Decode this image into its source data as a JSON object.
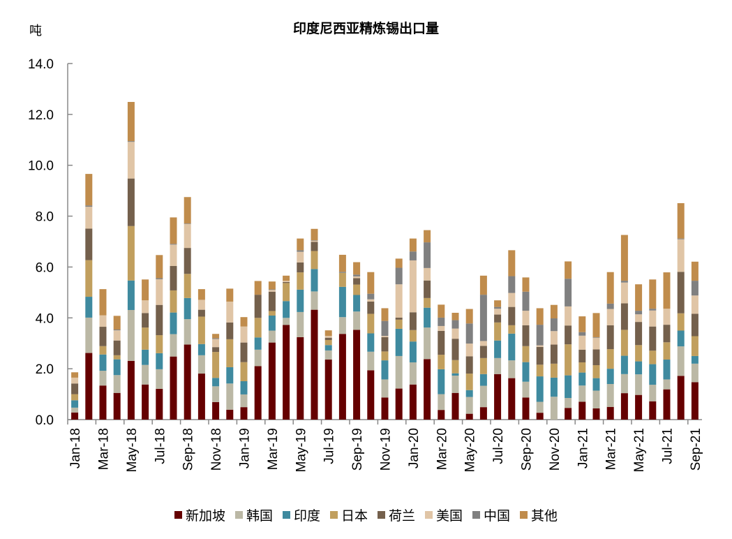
{
  "chart_data": {
    "type": "bar",
    "stacked": true,
    "title": "印度尼西亚精炼锡出口量",
    "ylabel": "吨",
    "ylim": [
      0,
      14
    ],
    "yticks": [
      "0.0",
      "2.0",
      "4.0",
      "6.0",
      "8.0",
      "10.0",
      "12.0",
      "14.0"
    ],
    "grid": false,
    "legend": "bottom",
    "categories": [
      "Jan-18",
      "Feb-18",
      "Mar-18",
      "Apr-18",
      "May-18",
      "Jun-18",
      "Jul-18",
      "Aug-18",
      "Sep-18",
      "Oct-18",
      "Nov-18",
      "Dec-18",
      "Jan-19",
      "Feb-19",
      "Mar-19",
      "Apr-19",
      "May-19",
      "Jun-19",
      "Jul-19",
      "Aug-19",
      "Sep-19",
      "Oct-19",
      "Nov-19",
      "Dec-19",
      "Jan-20",
      "Feb-20",
      "Mar-20",
      "Apr-20",
      "May-20",
      "Jun-20",
      "Jul-20",
      "Aug-20",
      "Sep-20",
      "Oct-20",
      "Nov-20",
      "Dec-20",
      "Jan-21",
      "Feb-21",
      "Mar-21",
      "Apr-21",
      "May-21",
      "Jun-21",
      "Jul-21",
      "Aug-21",
      "Sep-21"
    ],
    "tick_labels": [
      "Jan-18",
      "Mar-18",
      "May-18",
      "Jul-18",
      "Sep-18",
      "Nov-18",
      "Jan-19",
      "Mar-19",
      "May-19",
      "Jul-19",
      "Sep-19",
      "Nov-19",
      "Jan-20",
      "Mar-20",
      "May-20",
      "Jul-20",
      "Sep-20",
      "Nov-20",
      "Jan-21",
      "Mar-21",
      "May-21",
      "Jul-21",
      "Sep-21"
    ],
    "series": [
      {
        "name": "新加坡",
        "color": "#650000",
        "values": [
          0.28,
          2.62,
          1.34,
          1.05,
          2.31,
          1.38,
          1.21,
          2.48,
          2.95,
          1.81,
          0.69,
          0.39,
          0.49,
          2.1,
          3.03,
          3.72,
          3.24,
          4.32,
          2.36,
          3.37,
          3.53,
          1.94,
          0.87,
          1.22,
          1.38,
          2.38,
          0.38,
          1.05,
          0.23,
          0.49,
          1.79,
          1.63,
          0.87,
          0.27,
          0,
          0.46,
          0.7,
          0.44,
          0.5,
          1.04,
          0.97,
          0.72,
          1.19,
          1.72,
          1.47
        ]
      },
      {
        "name": "韩国",
        "color": "#BBB8A5",
        "values": [
          0.19,
          1.39,
          0.58,
          0.7,
          2.0,
          0.77,
          0.77,
          0.88,
          1.0,
          0.72,
          0.62,
          1.03,
          0.5,
          0.65,
          0.47,
          0.28,
          0.99,
          0.72,
          0.36,
          0.66,
          0.72,
          0.73,
          0.71,
          1.28,
          0.87,
          1.24,
          0.62,
          0.68,
          0.66,
          0.84,
          0.63,
          0.7,
          0.62,
          0.43,
          0.9,
          0.39,
          0.64,
          0.7,
          0.9,
          0.75,
          0.81,
          0.65,
          0.39,
          1.16,
          0.73
        ]
      },
      {
        "name": "印度",
        "color": "#3F8A9F",
        "values": [
          0.29,
          0.82,
          0.64,
          0.62,
          1.16,
          0.6,
          0.63,
          0.85,
          0.83,
          0.44,
          0.33,
          0.64,
          0.52,
          0.48,
          0.59,
          0.66,
          0.88,
          0.88,
          0.21,
          1.19,
          0.65,
          0.72,
          0.75,
          1.07,
          0.82,
          0.78,
          0.98,
          0.09,
          0.27,
          0.46,
          0.69,
          1.05,
          0.77,
          1.0,
          0.75,
          0.89,
          0.51,
          0.49,
          0.6,
          0.72,
          0.51,
          0.81,
          0.78,
          0.62,
          0.3
        ]
      },
      {
        "name": "日本",
        "color": "#C19F5E",
        "values": [
          0.24,
          1.44,
          0.33,
          0.16,
          2.14,
          0.87,
          0.71,
          0.87,
          0.95,
          1.08,
          1.02,
          1.1,
          0.75,
          0.77,
          0.18,
          0.71,
          0.68,
          0.71,
          0.2,
          0.55,
          0.41,
          0.77,
          0.35,
          0.36,
          0.45,
          0.38,
          0.57,
          0.52,
          0.65,
          0.63,
          0.71,
          0.33,
          0.63,
          0.46,
          0.55,
          1.22,
          0.4,
          0.51,
          0.77,
          1.02,
          0.64,
          0.53,
          0.68,
          0.68,
          0.78
        ]
      },
      {
        "name": "荷兰",
        "color": "#74604C",
        "values": [
          0.42,
          1.24,
          0.76,
          0.58,
          1.87,
          0.57,
          1.19,
          0.96,
          1.02,
          0.27,
          0.19,
          0.66,
          0.77,
          0.91,
          0.76,
          0.04,
          0.39,
          0.36,
          0.09,
          0,
          0.25,
          0.48,
          0.56,
          0.08,
          0.7,
          0.69,
          0.94,
          0.84,
          0.68,
          0.48,
          0.31,
          0.72,
          0.82,
          0.7,
          0.75,
          0.74,
          0.5,
          0.62,
          0.94,
          1.04,
          0.91,
          0.95,
          0.69,
          1.63,
          0.88
        ]
      },
      {
        "name": "美国",
        "color": "#E0C5A6",
        "values": [
          0.23,
          0.86,
          0.45,
          0.4,
          1.44,
          0.5,
          1.01,
          0.84,
          0.94,
          0.39,
          0.32,
          0.82,
          0.63,
          0,
          0.07,
          0.05,
          0.42,
          0.04,
          0.07,
          0,
          0.07,
          0.09,
          0.05,
          1.31,
          2.04,
          0.49,
          0.19,
          0.4,
          0.5,
          0.19,
          0.23,
          0.55,
          0.57,
          0.06,
          0.53,
          0.75,
          0.55,
          0.46,
          0.64,
          0.82,
          0.3,
          0.63,
          0.63,
          1.28,
          0.72
        ]
      },
      {
        "name": "中国",
        "color": "#808080",
        "values": [
          0,
          0.05,
          0,
          0.03,
          0.03,
          0,
          0.04,
          0.03,
          0.02,
          0,
          0.03,
          0,
          0,
          0,
          0.02,
          0,
          0.06,
          0.02,
          0,
          0.04,
          0.07,
          0.22,
          0.59,
          0.65,
          0.35,
          1.01,
          0.33,
          0.33,
          0.79,
          1.82,
          0.07,
          0.66,
          0.75,
          0.81,
          0.5,
          1.09,
          0.14,
          0.02,
          0.21,
          0.07,
          0.14,
          0.07,
          0,
          0.03,
          0.58
        ]
      },
      {
        "name": "其他",
        "color": "#C08C4C",
        "values": [
          0.21,
          1.24,
          1.03,
          0.54,
          1.54,
          0.82,
          0.91,
          1.04,
          1.04,
          0.42,
          0.17,
          0.51,
          0.37,
          0.54,
          0.31,
          0.2,
          0.46,
          0.45,
          0.22,
          0.67,
          0.49,
          0.85,
          0.5,
          0.36,
          0.51,
          0.48,
          0.51,
          0.29,
          0.57,
          0.75,
          0.26,
          1.02,
          0.56,
          0.65,
          0.53,
          0.68,
          0.62,
          0.95,
          1.24,
          1.8,
          1.04,
          1.15,
          1.43,
          1.39,
          0.75
        ]
      }
    ]
  }
}
